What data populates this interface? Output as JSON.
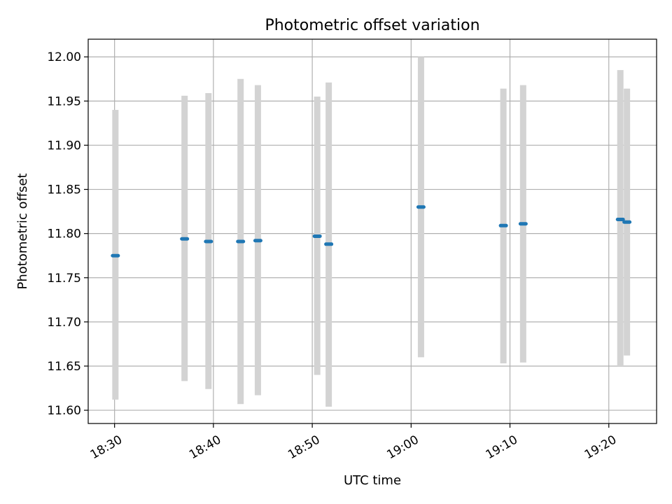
{
  "chart_data": {
    "type": "scatter",
    "title": "Photometric offset variation",
    "xlabel": "UTC time",
    "ylabel": "Photometric offset",
    "xlim": [
      "18:27:20",
      "19:24:50"
    ],
    "ylim": [
      11.585,
      12.02
    ],
    "x_ticks": [
      "18:30",
      "18:40",
      "18:50",
      "19:00",
      "19:10",
      "19:20"
    ],
    "y_ticks": [
      "11.60",
      "11.65",
      "11.70",
      "11.75",
      "11.80",
      "11.85",
      "11.90",
      "11.95",
      "12.00"
    ],
    "grid": true,
    "series": [
      {
        "points": [
          {
            "x": "18:30:05",
            "y": 11.775,
            "err_low": 11.612,
            "err_high": 11.94
          },
          {
            "x": "18:37:05",
            "y": 11.794,
            "err_low": 11.633,
            "err_high": 11.956
          },
          {
            "x": "18:39:30",
            "y": 11.791,
            "err_low": 11.624,
            "err_high": 11.959
          },
          {
            "x": "18:42:45",
            "y": 11.791,
            "err_low": 11.607,
            "err_high": 11.975
          },
          {
            "x": "18:44:30",
            "y": 11.792,
            "err_low": 11.617,
            "err_high": 11.968
          },
          {
            "x": "18:50:30",
            "y": 11.797,
            "err_low": 11.64,
            "err_high": 11.955
          },
          {
            "x": "18:51:40",
            "y": 11.788,
            "err_low": 11.604,
            "err_high": 11.971
          },
          {
            "x": "19:01:00",
            "y": 11.83,
            "err_low": 11.66,
            "err_high": 12.0
          },
          {
            "x": "19:09:20",
            "y": 11.809,
            "err_low": 11.653,
            "err_high": 11.964
          },
          {
            "x": "19:11:20",
            "y": 11.811,
            "err_low": 11.654,
            "err_high": 11.968
          },
          {
            "x": "19:21:10",
            "y": 11.816,
            "err_low": 11.65,
            "err_high": 11.985
          },
          {
            "x": "19:21:50",
            "y": 11.813,
            "err_low": 11.662,
            "err_high": 11.964
          }
        ]
      }
    ],
    "colors": {
      "marker": "#1f77b4",
      "errorbar": "#d3d3d3",
      "grid": "#b0b0b0",
      "axes": "#000000"
    }
  }
}
